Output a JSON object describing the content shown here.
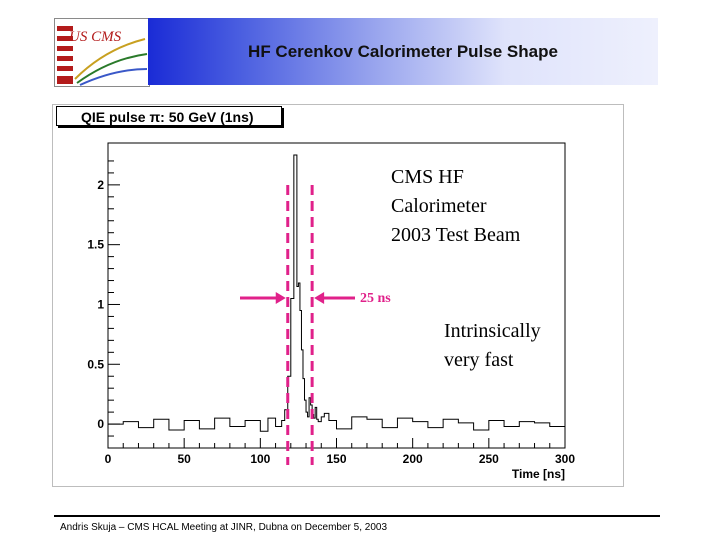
{
  "slide": {
    "title": "HF Cerenkov Calorimeter Pulse Shape",
    "footer": "Andris Skuja – CMS HCAL Meeting at JINR, Dubna on December 5, 2003",
    "logo_text": "US CMS"
  },
  "annotations": {
    "beam_line1": "CMS HF",
    "beam_line2": "Calorimeter",
    "beam_line3": "2003 Test Beam",
    "width_label": "25 ns",
    "fast_line1": "Intrinsically",
    "fast_line2": "very fast"
  },
  "chart_data": {
    "type": "line",
    "title": "QIE pulse π: 50 GeV (1ns)",
    "xlabel": "Time  [ns]",
    "ylabel": "",
    "xlim": [
      0,
      300
    ],
    "ylim": [
      -0.2,
      2.35
    ],
    "xticks": [
      0,
      50,
      100,
      150,
      200,
      250,
      300
    ],
    "yticks": [
      0,
      0.5,
      1,
      1.5,
      2
    ],
    "ytick_labels": [
      "0",
      "0.5",
      "1",
      "1.5",
      "2"
    ],
    "grid": false,
    "markers": {
      "dashed_lines_x": [
        118,
        134
      ],
      "color": "#e0218a"
    },
    "series": [
      {
        "x": [
          0,
          10,
          20,
          30,
          40,
          50,
          60,
          70,
          80,
          90,
          100,
          105,
          110,
          114,
          116,
          118,
          120,
          122,
          124,
          125,
          126,
          127,
          128,
          129,
          130,
          131,
          132,
          133,
          134,
          135,
          136,
          137,
          138,
          140,
          142,
          145,
          150,
          160,
          170,
          180,
          190,
          200,
          210,
          220,
          230,
          240,
          250,
          260,
          270,
          280,
          290,
          300
        ],
        "values": [
          0.0,
          0.02,
          -0.03,
          0.04,
          -0.05,
          0.03,
          -0.04,
          0.05,
          -0.02,
          0.03,
          -0.06,
          0.05,
          -0.02,
          0.03,
          0.12,
          0.4,
          1.05,
          2.25,
          1.15,
          1.18,
          0.95,
          0.62,
          0.38,
          0.2,
          0.1,
          0.06,
          0.22,
          0.16,
          0.08,
          0.05,
          0.14,
          0.04,
          0.02,
          0.06,
          0.09,
          0.03,
          -0.04,
          0.06,
          0.04,
          -0.03,
          0.05,
          0.02,
          -0.03,
          0.04,
          0.01,
          -0.05,
          0.03,
          -0.02,
          0.02,
          0.01,
          -0.02,
          0.0
        ]
      }
    ]
  },
  "colors": {
    "accent": "#e0218a",
    "header_start": "#1a2bd6",
    "header_end": "#eef0fd"
  }
}
